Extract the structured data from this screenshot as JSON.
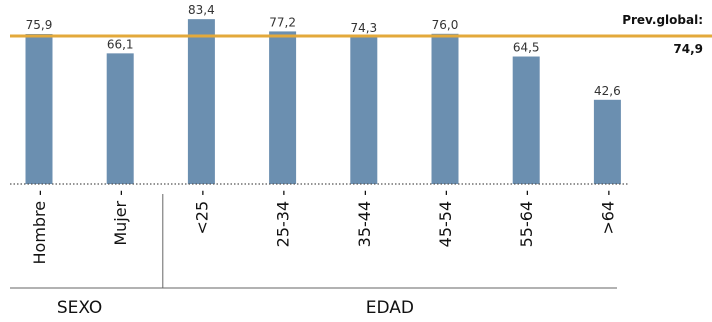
{
  "chart_data": {
    "type": "bar",
    "categories": [
      "Hombre -",
      "Mujer -",
      "<25 -",
      "25-34 -",
      "35-44 -",
      "45-54 -",
      "55-64 -",
      ">64 -"
    ],
    "values": [
      75.9,
      66.1,
      83.4,
      77.2,
      74.3,
      76.0,
      64.5,
      42.6
    ],
    "value_labels": [
      "75,9",
      "66,1",
      "83,4",
      "77,2",
      "74,3",
      "76,0",
      "64,5",
      "42,6"
    ],
    "ylim": [
      0,
      85
    ],
    "grid": false,
    "groups": [
      {
        "label": "SEXO",
        "count": 2
      },
      {
        "label": "EDAD",
        "count": 6
      }
    ],
    "reference_line": {
      "name": "Prev.global:",
      "value": 74.9,
      "label": "74,9"
    }
  },
  "colors": {
    "bar": "#6b8fb0",
    "reference_line": "#e3a93b",
    "baseline": "#555555",
    "separator": "#666666"
  }
}
